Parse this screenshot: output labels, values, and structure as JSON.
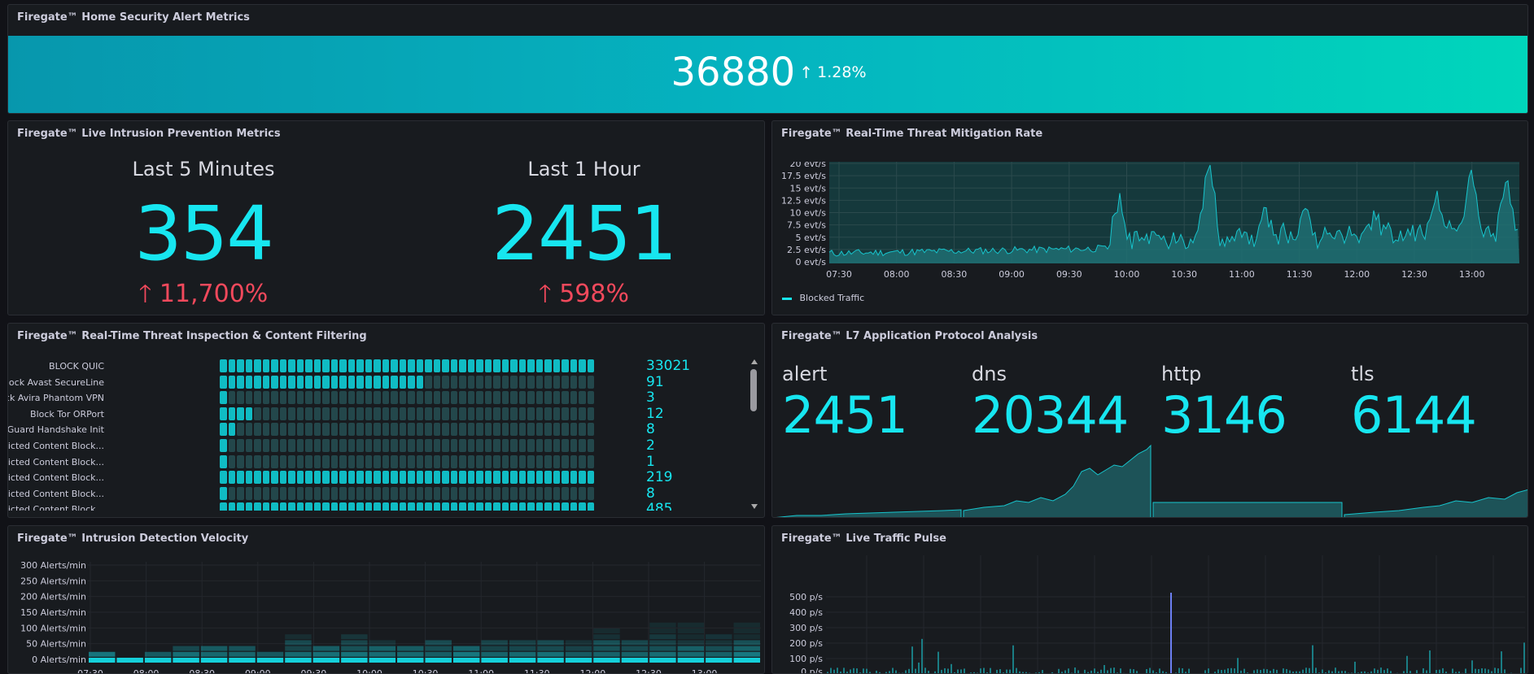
{
  "top_panel": {
    "title": "Firegate™ Home Security Alert Metrics",
    "value": "36880",
    "change": "1.28%"
  },
  "ips_panel": {
    "title": "Firegate™ Live Intrusion Prevention Metrics",
    "stats": [
      {
        "label": "Last 5 Minutes",
        "value": "354",
        "change": "11,700%"
      },
      {
        "label": "Last 1 Hour",
        "value": "2451",
        "change": "598%"
      }
    ]
  },
  "mitigation_panel": {
    "title": "Firegate™ Real-Time Threat Mitigation Rate",
    "legend": "Blocked Traffic",
    "y_ticks": [
      "0 evt/s",
      "2.5 evt/s",
      "5 evt/s",
      "7.5 evt/s",
      "10 evt/s",
      "12.5 evt/s",
      "15 evt/s",
      "17.5 evt/s",
      "20 evt/s"
    ],
    "x_ticks": [
      "07:30",
      "08:00",
      "08:30",
      "09:00",
      "09:30",
      "10:00",
      "10:30",
      "11:00",
      "11:30",
      "12:00",
      "12:30",
      "13:00"
    ]
  },
  "inspection_panel": {
    "title": "Firegate™ Real-Time Threat Inspection & Content Filtering",
    "rows": [
      {
        "name": "BLOCK QUIC",
        "value": "33021",
        "level": 1.0
      },
      {
        "name": "Block Avast SecureLine",
        "value": "91",
        "level": 0.55
      },
      {
        "name": "Block Avira Phantom VPN",
        "value": "3",
        "level": 0.02
      },
      {
        "name": "Block Tor ORPort",
        "value": "12",
        "level": 0.08
      },
      {
        "name": "Block WireGuard Handshake Init",
        "value": "8",
        "level": 0.05
      },
      {
        "name": "Firegate™ Policy: Restricted Content Block...",
        "value": "2",
        "level": 0.02
      },
      {
        "name": "Firegate™ Policy: Restricted Content Block...",
        "value": "1",
        "level": 0.01
      },
      {
        "name": "Firegate™ Policy: Restricted Content Block...",
        "value": "219",
        "level": 1.0
      },
      {
        "name": "Firegate™ Policy: Restricted Content Block...",
        "value": "8",
        "level": 0.02
      },
      {
        "name": "Firegate™ Policy: Restricted Content Block...",
        "value": "485",
        "level": 1.0
      }
    ]
  },
  "l7_panel": {
    "title": "Firegate™ L7 Application Protocol Analysis",
    "items": [
      {
        "label": "alert",
        "value": "2451"
      },
      {
        "label": "dns",
        "value": "20344"
      },
      {
        "label": "http",
        "value": "3146"
      },
      {
        "label": "tls",
        "value": "6144"
      }
    ]
  },
  "velocity_panel": {
    "title": "Firegate™ Intrusion Detection Velocity",
    "y_ticks": [
      "0 Alerts/min",
      "50 Alerts/min",
      "100 Alerts/min",
      "150 Alerts/min",
      "200 Alerts/min",
      "250 Alerts/min",
      "300 Alerts/min"
    ],
    "x_ticks": [
      "07:30",
      "08:00",
      "08:30",
      "09:00",
      "09:30",
      "10:00",
      "10:30",
      "11:00",
      "11:30",
      "12:00",
      "12:30",
      "13:00"
    ]
  },
  "pulse_panel": {
    "title": "Firegate™ Live Traffic Pulse",
    "y_ticks": [
      "100 p/s",
      "200 p/s",
      "300 p/s",
      "400 p/s",
      "500 p/s"
    ],
    "bottom_partial": "0 p/s"
  },
  "colors": {
    "accent": "#17e6f0",
    "down": "#f2495c",
    "panel_bg": "#181b1f",
    "page_bg": "#111217"
  }
}
